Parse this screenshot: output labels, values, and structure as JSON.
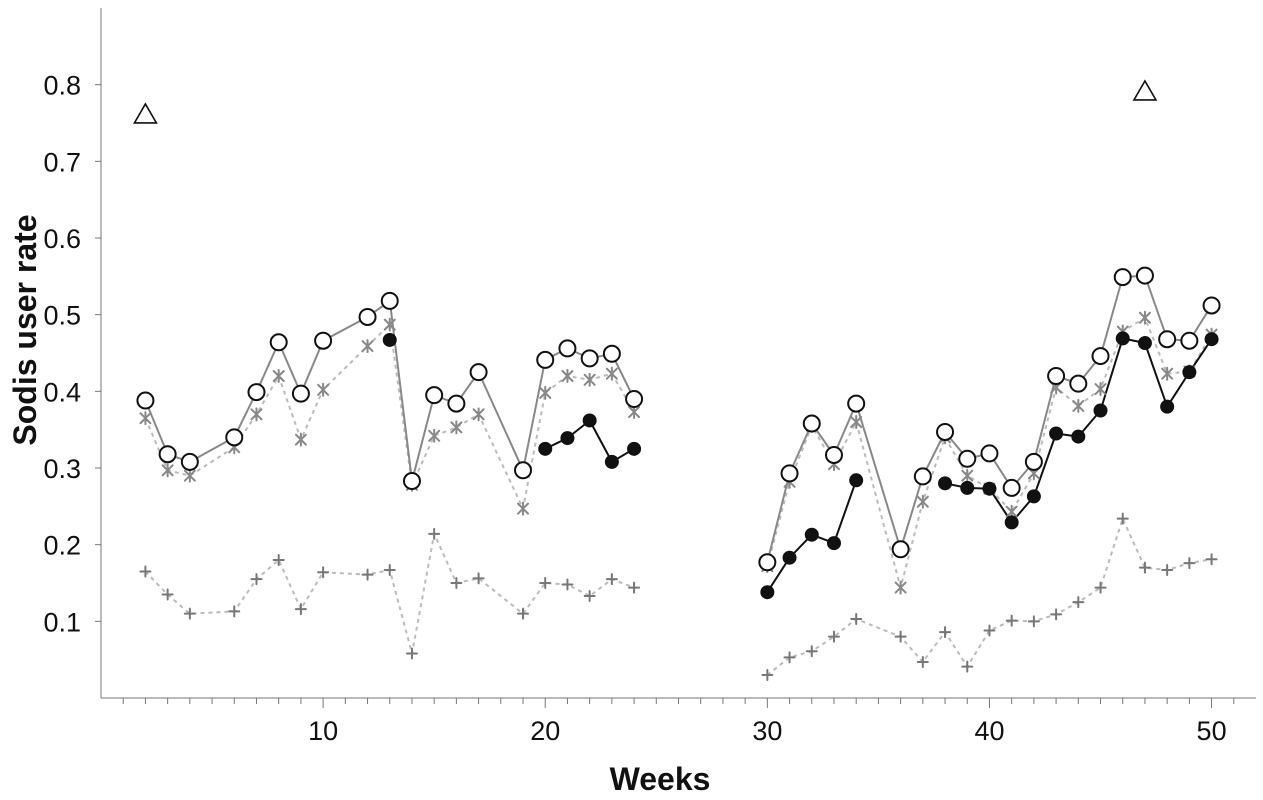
{
  "chart_data": {
    "type": "line",
    "title": "",
    "xlabel": "Weeks",
    "ylabel": "Sodis user rate",
    "xlim": [
      0,
      52
    ],
    "ylim": [
      0,
      0.9
    ],
    "x_ticks": [
      10,
      20,
      30,
      40,
      50
    ],
    "x_tick_labels": [
      "10",
      "20",
      "30",
      "40",
      "50"
    ],
    "y_ticks": [
      0.1,
      0.2,
      0.3,
      0.4,
      0.5,
      0.6,
      0.7,
      0.8
    ],
    "y_tick_labels": [
      "0.1",
      "0.2",
      "0.3",
      "0.4",
      "0.5",
      "0.6",
      "0.7",
      "0.8"
    ],
    "grid": false,
    "legend": "none",
    "colors": {
      "open_circle_line": "#888888",
      "filled_circle_line": "#111111",
      "star_line": "#bbbbbb",
      "plus_line": "#bbbbbb",
      "star_marker": "#888888",
      "plus_marker": "#777777"
    },
    "series": [
      {
        "marker": "open-circle",
        "style": "solid-gray",
        "segments": [
          [
            [
              2,
              0.388
            ],
            [
              3,
              0.318
            ],
            [
              4,
              0.308
            ],
            [
              6,
              0.34
            ],
            [
              7,
              0.399
            ],
            [
              8,
              0.464
            ],
            [
              9,
              0.397
            ],
            [
              10,
              0.466
            ],
            [
              12,
              0.497
            ],
            [
              13,
              0.518
            ],
            [
              14,
              0.283
            ],
            [
              15,
              0.395
            ],
            [
              16,
              0.384
            ],
            [
              17,
              0.425
            ],
            [
              19,
              0.297
            ],
            [
              20,
              0.441
            ],
            [
              21,
              0.456
            ],
            [
              22,
              0.443
            ],
            [
              23,
              0.449
            ],
            [
              24,
              0.39
            ]
          ],
          [
            [
              30,
              0.177
            ],
            [
              31,
              0.293
            ],
            [
              32,
              0.358
            ],
            [
              33,
              0.317
            ],
            [
              34,
              0.384
            ],
            [
              36,
              0.194
            ],
            [
              37,
              0.289
            ],
            [
              38,
              0.347
            ],
            [
              39,
              0.312
            ],
            [
              40,
              0.319
            ],
            [
              41,
              0.274
            ],
            [
              42,
              0.308
            ],
            [
              43,
              0.42
            ],
            [
              44,
              0.41
            ],
            [
              45,
              0.446
            ],
            [
              46,
              0.549
            ],
            [
              47,
              0.551
            ],
            [
              48,
              0.468
            ],
            [
              49,
              0.466
            ],
            [
              50,
              0.512
            ]
          ]
        ]
      },
      {
        "marker": "filled-circle",
        "style": "solid-black",
        "segments": [
          [
            [
              13,
              0.467
            ]
          ],
          [
            [
              20,
              0.325
            ],
            [
              21,
              0.339
            ],
            [
              22,
              0.362
            ],
            [
              23,
              0.308
            ],
            [
              24,
              0.325
            ]
          ],
          [
            [
              30,
              0.138
            ],
            [
              31,
              0.183
            ],
            [
              32,
              0.213
            ],
            [
              33,
              0.202
            ],
            [
              34,
              0.284
            ]
          ],
          [
            [
              38,
              0.28
            ],
            [
              39,
              0.274
            ],
            [
              40,
              0.273
            ],
            [
              41,
              0.229
            ],
            [
              42,
              0.263
            ],
            [
              43,
              0.345
            ],
            [
              44,
              0.341
            ],
            [
              45,
              0.375
            ],
            [
              46,
              0.469
            ],
            [
              47,
              0.463
            ],
            [
              48,
              0.38
            ],
            [
              49,
              0.425
            ],
            [
              50,
              0.468
            ]
          ]
        ]
      },
      {
        "marker": "asterisk",
        "style": "dotted-gray",
        "segments": [
          [
            [
              2,
              0.365
            ],
            [
              3,
              0.297
            ],
            [
              4,
              0.29
            ],
            [
              6,
              0.327
            ],
            [
              7,
              0.37
            ],
            [
              8,
              0.42
            ],
            [
              9,
              0.337
            ],
            [
              10,
              0.402
            ],
            [
              12,
              0.459
            ],
            [
              13,
              0.487
            ],
            [
              14,
              0.278
            ],
            [
              15,
              0.342
            ],
            [
              16,
              0.353
            ],
            [
              17,
              0.37
            ],
            [
              19,
              0.247
            ],
            [
              20,
              0.398
            ],
            [
              21,
              0.42
            ],
            [
              22,
              0.415
            ],
            [
              23,
              0.423
            ],
            [
              24,
              0.373
            ]
          ],
          [
            [
              30,
              0.172
            ],
            [
              31,
              0.282
            ],
            [
              32,
              0.355
            ],
            [
              33,
              0.305
            ],
            [
              34,
              0.36
            ],
            [
              36,
              0.144
            ],
            [
              37,
              0.256
            ],
            [
              38,
              0.34
            ],
            [
              39,
              0.29
            ],
            [
              40,
              0.273
            ],
            [
              41,
              0.243
            ],
            [
              42,
              0.293
            ],
            [
              43,
              0.405
            ],
            [
              44,
              0.381
            ],
            [
              45,
              0.403
            ],
            [
              46,
              0.478
            ],
            [
              47,
              0.496
            ],
            [
              48,
              0.423
            ],
            [
              49,
              0.426
            ],
            [
              50,
              0.474
            ]
          ]
        ]
      },
      {
        "marker": "plus",
        "style": "dotted-gray",
        "segments": [
          [
            [
              2,
              0.165
            ],
            [
              3,
              0.135
            ],
            [
              4,
              0.11
            ],
            [
              6,
              0.113
            ],
            [
              7,
              0.155
            ],
            [
              8,
              0.18
            ],
            [
              9,
              0.116
            ],
            [
              10,
              0.164
            ],
            [
              12,
              0.161
            ],
            [
              13,
              0.167
            ],
            [
              14,
              0.058
            ],
            [
              15,
              0.214
            ],
            [
              16,
              0.15
            ],
            [
              17,
              0.156
            ],
            [
              19,
              0.11
            ],
            [
              20,
              0.15
            ],
            [
              21,
              0.148
            ],
            [
              22,
              0.133
            ],
            [
              23,
              0.155
            ],
            [
              24,
              0.144
            ]
          ],
          [
            [
              30,
              0.03
            ],
            [
              31,
              0.053
            ],
            [
              32,
              0.061
            ],
            [
              33,
              0.08
            ],
            [
              34,
              0.103
            ],
            [
              36,
              0.08
            ],
            [
              37,
              0.047
            ],
            [
              38,
              0.086
            ],
            [
              39,
              0.041
            ],
            [
              40,
              0.088
            ],
            [
              41,
              0.101
            ],
            [
              42,
              0.1
            ],
            [
              43,
              0.109
            ],
            [
              44,
              0.125
            ],
            [
              45,
              0.144
            ],
            [
              46,
              0.234
            ],
            [
              47,
              0.17
            ],
            [
              48,
              0.167
            ],
            [
              49,
              0.176
            ],
            [
              50,
              0.181
            ]
          ]
        ]
      }
    ],
    "annotations": [
      {
        "marker": "open-triangle",
        "x": 2,
        "y": 0.76
      },
      {
        "marker": "open-triangle",
        "x": 47,
        "y": 0.79
      }
    ]
  }
}
